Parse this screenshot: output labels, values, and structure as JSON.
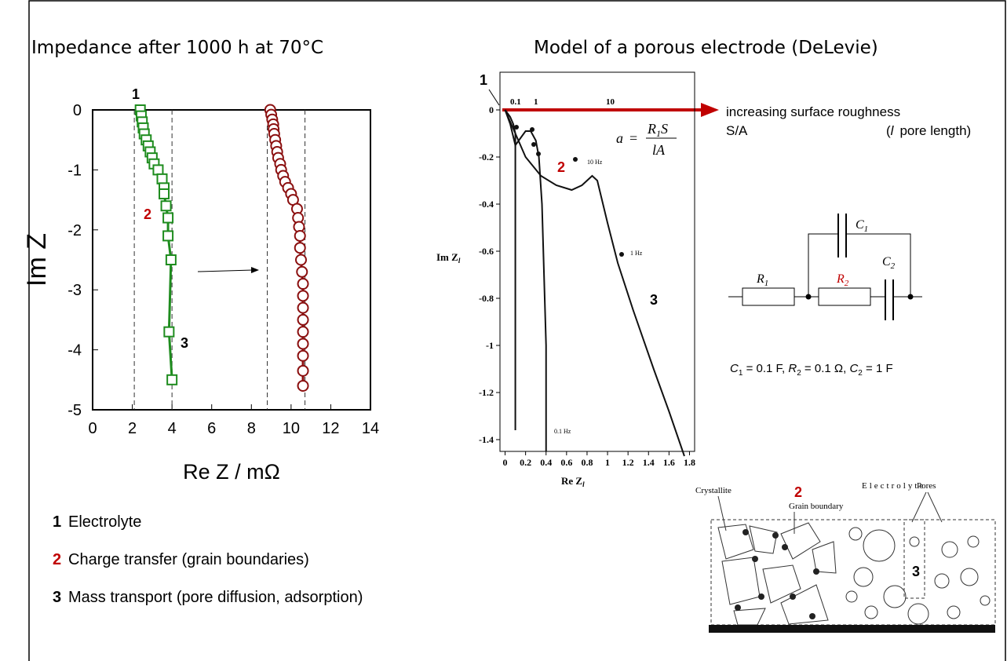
{
  "slide": {
    "left_title": "Impedance after 1000 h at 70°C",
    "right_title": "Model of a porous electrode (DeLevie)",
    "legend": [
      {
        "num": "1",
        "text": "Electrolyte",
        "color": "#000000"
      },
      {
        "num": "2",
        "text": "Charge transfer (grain boundaries)",
        "color": "#c00000"
      },
      {
        "num": "3",
        "text": "Mass transport (pore diffusion, adsorption)",
        "color": "#000000"
      }
    ],
    "roughness": "increasing surface roughness",
    "sa": "S/A",
    "pore_l": "l",
    "pore_text": "pore length)",
    "pore_open": "(",
    "formula": {
      "a": "a",
      "eq": "=",
      "r": "R",
      "r_sub": "1",
      "s": "S",
      "den": "lA"
    },
    "circuit": {
      "c1": "C",
      "c1_sub": "1",
      "r1": "R",
      "r1_sub": "1",
      "r2": "R",
      "r2_sub": "2",
      "c2": "C",
      "c2_sub": "2"
    },
    "params": [
      {
        "sym": "C",
        "sub": "1",
        "rest": " = 0.1 F, "
      },
      {
        "sym": "R",
        "sub": "2",
        "rest": " = 0.1 Ω, "
      },
      {
        "sym": "C",
        "sub": "2",
        "rest": " = 1 F"
      }
    ],
    "micro": {
      "crystallite": "Crystallite",
      "two": "2",
      "electrolyte": "Electrolyte",
      "grain": "Grain boundary",
      "pores": "Pores",
      "three": "3"
    }
  },
  "chart_data": [
    {
      "type": "scatter",
      "xlabel": "Re Z / mΩ",
      "ylabel": "Im Z",
      "xlim": [
        0,
        14
      ],
      "ylim": [
        -5,
        0
      ],
      "xticks": [
        0,
        2,
        4,
        6,
        8,
        10,
        12,
        14
      ],
      "yticks": [
        0,
        -1,
        -2,
        -3,
        -4,
        -5
      ],
      "ref_lines": [
        2.1,
        4,
        8.8,
        10.7
      ],
      "annotations": [
        {
          "text": "1",
          "color": "#000000"
        },
        {
          "text": "2",
          "color": "#c00000"
        },
        {
          "text": "3",
          "color": "#000000"
        }
      ],
      "series": [
        {
          "color": "#1e8c1e",
          "marker": "square",
          "x": [
            2.4,
            2.45,
            2.5,
            2.55,
            2.6,
            2.7,
            2.8,
            2.9,
            3.0,
            3.1,
            3.3,
            3.5,
            3.6,
            3.6,
            3.7,
            3.8,
            3.8,
            3.95,
            3.85,
            4.0
          ],
          "y": [
            0,
            -0.1,
            -0.2,
            -0.3,
            -0.4,
            -0.5,
            -0.6,
            -0.7,
            -0.8,
            -0.9,
            -1.0,
            -1.15,
            -1.3,
            -1.4,
            -1.6,
            -1.8,
            -2.1,
            -2.5,
            -3.7,
            -4.5
          ]
        },
        {
          "color": "#8b1010",
          "marker": "circle",
          "x": [
            8.95,
            9.0,
            9.05,
            9.1,
            9.12,
            9.15,
            9.2,
            9.25,
            9.3,
            9.35,
            9.45,
            9.5,
            9.6,
            9.7,
            9.85,
            10.0,
            10.1,
            10.3,
            10.35,
            10.4,
            10.45,
            10.45,
            10.5,
            10.55,
            10.6,
            10.6,
            10.6,
            10.6,
            10.6,
            10.6,
            10.6,
            10.6,
            10.6
          ],
          "y": [
            0,
            -0.08,
            -0.16,
            -0.24,
            -0.32,
            -0.4,
            -0.5,
            -0.6,
            -0.7,
            -0.8,
            -0.9,
            -1.0,
            -1.1,
            -1.2,
            -1.3,
            -1.4,
            -1.5,
            -1.65,
            -1.8,
            -1.95,
            -2.1,
            -2.3,
            -2.5,
            -2.7,
            -2.9,
            -3.1,
            -3.3,
            -3.5,
            -3.7,
            -3.9,
            -4.1,
            -4.35,
            -4.6
          ]
        }
      ]
    },
    {
      "type": "line",
      "xlabel": {
        "main": "Re Z",
        "sub": "l"
      },
      "ylabel": {
        "main": "Im Z",
        "sub": "l"
      },
      "xlim": [
        -0.05,
        1.85
      ],
      "ylim": [
        -1.45,
        0.16
      ],
      "xticks": [
        0,
        0.2,
        0.4,
        0.6,
        0.8,
        1,
        1.2,
        1.4,
        1.6,
        1.8
      ],
      "yticks": [
        0,
        -0.2,
        -0.4,
        -0.6,
        -0.8,
        -1,
        -1.2,
        -1.4
      ],
      "top_labels": [
        "0.1",
        "1",
        "10"
      ],
      "freq_labels": [
        "10 Hz",
        "1 Hz",
        "0.1 Hz"
      ],
      "annotations": [
        {
          "text": "1",
          "color": "#000000"
        },
        {
          "text": "2",
          "color": "#c00000"
        },
        {
          "text": "3",
          "color": "#000000"
        }
      ],
      "series": [
        {
          "color": "#111111",
          "marker": "none",
          "x": [
            0,
            0.05,
            0.08,
            0.1,
            0.1
          ],
          "y": [
            0,
            -0.03,
            -0.06,
            -0.1,
            -1.36
          ]
        },
        {
          "color": "#111111",
          "marker": "none",
          "x": [
            0,
            0.05,
            0.1,
            0.15,
            0.2,
            0.25,
            0.3,
            0.33,
            0.36,
            0.4,
            0.4
          ],
          "y": [
            0,
            -0.06,
            -0.15,
            -0.12,
            -0.09,
            -0.09,
            -0.13,
            -0.2,
            -0.4,
            -1.0,
            -1.45
          ]
        },
        {
          "color": "#111111",
          "marker": "none",
          "x": [
            0,
            0.1,
            0.2,
            0.35,
            0.5,
            0.65,
            0.75,
            0.85,
            0.9,
            1.0,
            1.1,
            1.25,
            1.45,
            1.6,
            1.75
          ],
          "y": [
            0,
            -0.1,
            -0.2,
            -0.28,
            -0.32,
            -0.34,
            -0.32,
            -0.28,
            -0.3,
            -0.48,
            -0.65,
            -0.85,
            -1.1,
            -1.28,
            -1.47
          ]
        }
      ]
    }
  ]
}
